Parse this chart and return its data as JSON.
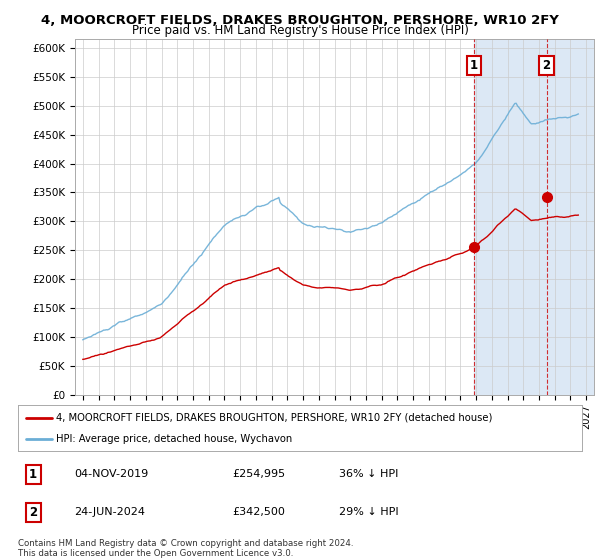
{
  "title_line1": "4, MOORCROFT FIELDS, DRAKES BROUGHTON, PERSHORE, WR10 2FY",
  "title_line2": "Price paid vs. HM Land Registry's House Price Index (HPI)",
  "ylabel_ticks": [
    "£0",
    "£50K",
    "£100K",
    "£150K",
    "£200K",
    "£250K",
    "£300K",
    "£350K",
    "£400K",
    "£450K",
    "£500K",
    "£550K",
    "£600K"
  ],
  "ytick_values": [
    0,
    50000,
    100000,
    150000,
    200000,
    250000,
    300000,
    350000,
    400000,
    450000,
    500000,
    550000,
    600000
  ],
  "ylim": [
    0,
    615000
  ],
  "xlim_start": 1994.5,
  "xlim_end": 2027.5,
  "hpi_color": "#6baed6",
  "price_color": "#cc0000",
  "point1_x": 2019.84,
  "point1_y": 254995,
  "point2_x": 2024.48,
  "point2_y": 342500,
  "vline1_x": 2019.84,
  "vline2_x": 2024.48,
  "legend_line1": "4, MOORCROFT FIELDS, DRAKES BROUGHTON, PERSHORE, WR10 2FY (detached house)",
  "legend_line2": "HPI: Average price, detached house, Wychavon",
  "table_row1": [
    "1",
    "04-NOV-2019",
    "£254,995",
    "36% ↓ HPI"
  ],
  "table_row2": [
    "2",
    "24-JUN-2024",
    "£342,500",
    "29% ↓ HPI"
  ],
  "footnote": "Contains HM Land Registry data © Crown copyright and database right 2024.\nThis data is licensed under the Open Government Licence v3.0.",
  "background_color": "#ffffff",
  "grid_color": "#cccccc"
}
